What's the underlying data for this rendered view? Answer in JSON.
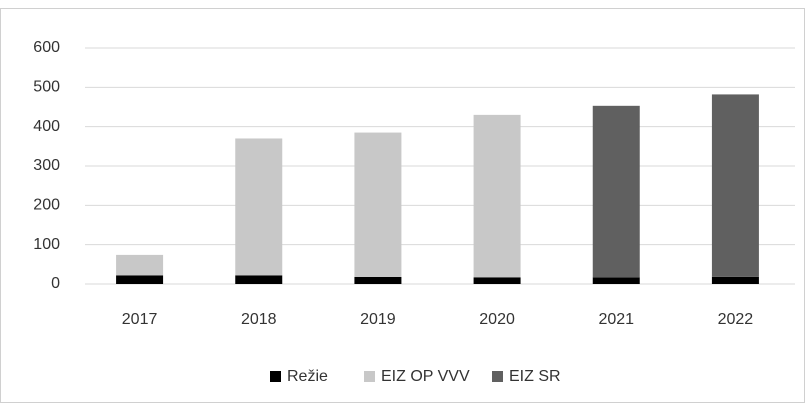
{
  "chart_data": {
    "type": "stacked_bar",
    "categories": [
      "2017",
      "2018",
      "2019",
      "2020",
      "2021",
      "2022"
    ],
    "series": [
      {
        "name": "Režie",
        "color": "#000000",
        "values": [
          22,
          22,
          18,
          17,
          17,
          18
        ]
      },
      {
        "name": "EIZ OP VVV",
        "color": "#c8c8c8",
        "values": [
          52,
          348,
          367,
          413,
          0,
          0
        ]
      },
      {
        "name": "EIZ SR",
        "color": "#606060",
        "values": [
          0,
          0,
          0,
          0,
          436,
          464
        ]
      }
    ],
    "ylim": [
      0,
      600
    ],
    "yticks": [
      0,
      100,
      200,
      300,
      400,
      500,
      600
    ],
    "grid": true,
    "legend": "bottom"
  }
}
